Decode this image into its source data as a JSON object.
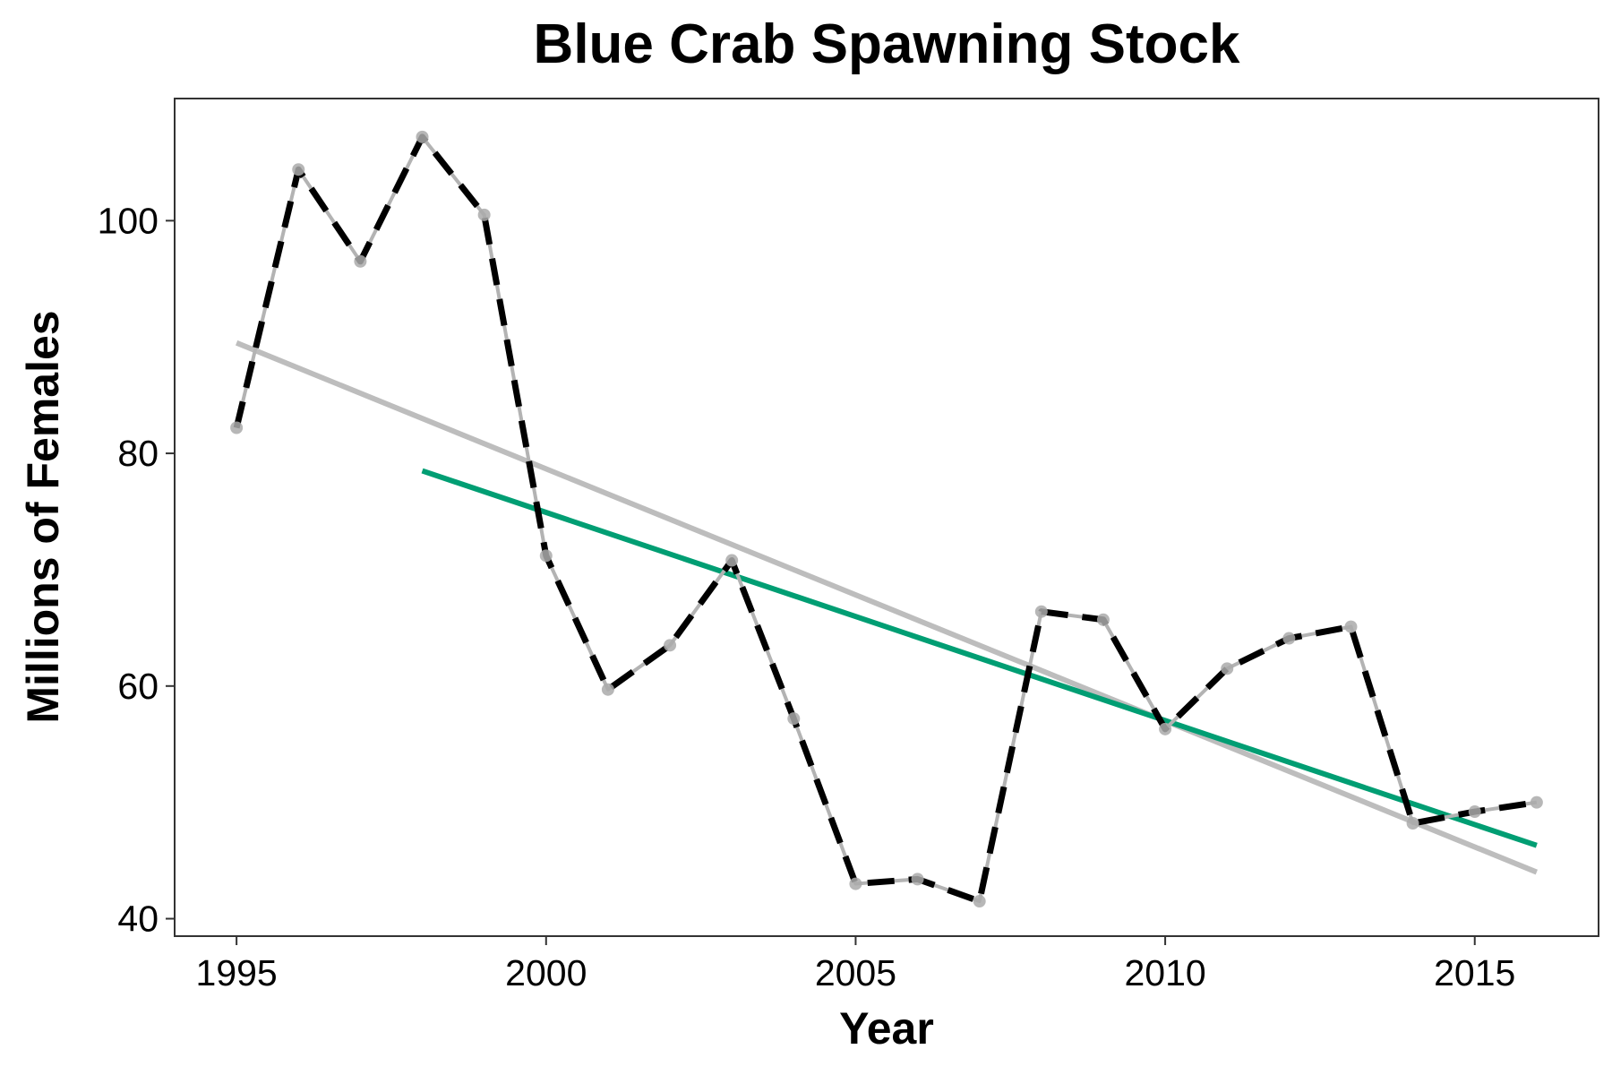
{
  "chart_data": {
    "type": "line",
    "title": "Blue Crab Spawning Stock",
    "xlabel": "Year",
    "ylabel": "Millions of Females",
    "xlim": [
      1994,
      2017
    ],
    "ylim": [
      38.5,
      110.5
    ],
    "x_ticks": [
      1995,
      2000,
      2005,
      2010,
      2015
    ],
    "y_ticks": [
      40,
      60,
      80,
      100
    ],
    "grid": false,
    "legend": "none",
    "series": [
      {
        "style": "dashed line with points",
        "line_color": "#000000",
        "underlay_color": "#b3b3b3",
        "point_color": "#aaaaaa",
        "x": [
          1995,
          1996,
          1997,
          1998,
          1999,
          2000,
          2001,
          2002,
          2003,
          2004,
          2005,
          2006,
          2007,
          2008,
          2009,
          2010,
          2011,
          2012,
          2013,
          2014,
          2015,
          2016
        ],
        "y": [
          82.2,
          104.4,
          96.5,
          107.2,
          100.5,
          71.2,
          59.7,
          63.5,
          70.8,
          57.2,
          43.0,
          43.4,
          41.5,
          66.4,
          65.7,
          56.3,
          61.5,
          64.1,
          65.1,
          48.2,
          49.2,
          50.0
        ]
      }
    ],
    "trend_lines": [
      {
        "color": "#bdbdbd",
        "x": [
          1995,
          2016
        ],
        "y": [
          89.5,
          44.0
        ]
      },
      {
        "color": "#009e73",
        "x": [
          1998,
          2016
        ],
        "y": [
          78.5,
          46.3
        ]
      }
    ]
  }
}
